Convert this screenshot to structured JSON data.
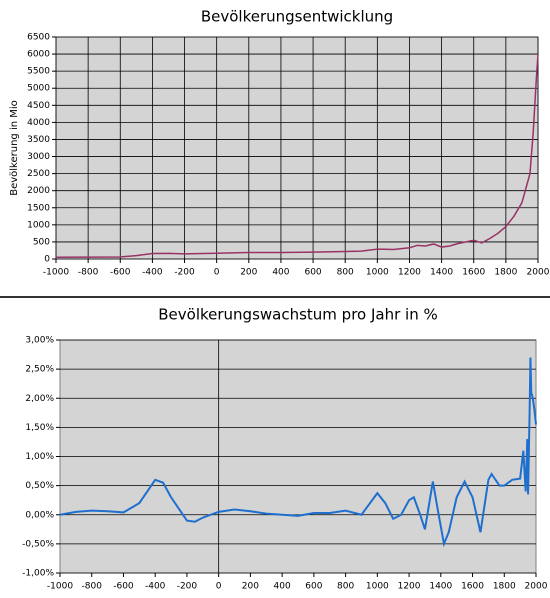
{
  "chart_data": [
    {
      "type": "line",
      "title": "Bevölkerungsentwicklung",
      "y_label": "Bevölkerung in Mio",
      "color": "#993366",
      "grid": "both",
      "x": [
        -1000,
        -800,
        -600,
        -500,
        -400,
        -300,
        -200,
        0,
        200,
        400,
        600,
        800,
        900,
        1000,
        1100,
        1200,
        1250,
        1300,
        1350,
        1400,
        1450,
        1500,
        1600,
        1650,
        1700,
        1750,
        1800,
        1850,
        1900,
        1950,
        1970,
        1990,
        2000
      ],
      "values": [
        50,
        55,
        60,
        100,
        160,
        165,
        150,
        170,
        190,
        190,
        200,
        220,
        230,
        290,
        280,
        330,
        400,
        380,
        440,
        350,
        380,
        450,
        550,
        470,
        600,
        750,
        950,
        1250,
        1650,
        2500,
        3700,
        5300,
        6000
      ],
      "xlim": [
        -1000,
        2000
      ],
      "xticks": [
        -1000,
        -800,
        -600,
        -400,
        -200,
        0,
        200,
        400,
        600,
        800,
        1000,
        1200,
        1400,
        1600,
        1800,
        2000
      ],
      "ylim": [
        0,
        6500
      ],
      "yticks": [
        0,
        500,
        1000,
        1500,
        2000,
        2500,
        3000,
        3500,
        4000,
        4500,
        5000,
        5500,
        6000,
        6500
      ]
    },
    {
      "type": "line",
      "title": "Bevölkerungswachstum pro Jahr in %",
      "color": "#1f6fcf",
      "grid": "y",
      "x": [
        -1000,
        -900,
        -800,
        -700,
        -600,
        -500,
        -400,
        -350,
        -300,
        -200,
        -150,
        -100,
        0,
        100,
        200,
        300,
        400,
        500,
        600,
        700,
        800,
        900,
        1000,
        1050,
        1100,
        1150,
        1200,
        1230,
        1270,
        1300,
        1350,
        1380,
        1420,
        1450,
        1500,
        1550,
        1600,
        1650,
        1700,
        1720,
        1770,
        1800,
        1850,
        1900,
        1920,
        1935,
        1945,
        1950,
        1960,
        1965,
        1970,
        1980,
        1990,
        2000
      ],
      "values": [
        0,
        0.05,
        0.07,
        0.06,
        0.04,
        0.2,
        0.6,
        0.55,
        0.3,
        -0.1,
        -0.12,
        -0.05,
        0.05,
        0.09,
        0.06,
        0.02,
        0,
        -0.02,
        0.03,
        0.03,
        0.07,
        0,
        0.37,
        0.2,
        -0.07,
        0,
        0.25,
        0.3,
        0,
        -0.25,
        0.57,
        0.1,
        -0.5,
        -0.3,
        0.3,
        0.57,
        0.3,
        -0.3,
        0.6,
        0.7,
        0.5,
        0.5,
        0.6,
        0.62,
        1.1,
        0.4,
        1.3,
        0.35,
        1.8,
        2.7,
        2.1,
        2.0,
        1.8,
        1.55
      ],
      "xlim": [
        -1000,
        2000
      ],
      "xticks": [
        -1000,
        -800,
        -600,
        -400,
        -200,
        0,
        200,
        400,
        600,
        800,
        1000,
        1200,
        1400,
        1600,
        1800,
        2000
      ],
      "ylim": [
        -1,
        3
      ],
      "yticks": [
        {
          "value": -1,
          "label": "-1,00%"
        },
        {
          "value": -0.5,
          "label": "-0,50%"
        },
        {
          "value": 0,
          "label": "0,00%"
        },
        {
          "value": 0.5,
          "label": "0,50%"
        },
        {
          "value": 1,
          "label": "1,00%"
        },
        {
          "value": 1.5,
          "label": "1,50%"
        },
        {
          "value": 2,
          "label": "2,00%"
        },
        {
          "value": 2.5,
          "label": "2,50%"
        },
        {
          "value": 3,
          "label": "3,00%"
        }
      ]
    }
  ]
}
